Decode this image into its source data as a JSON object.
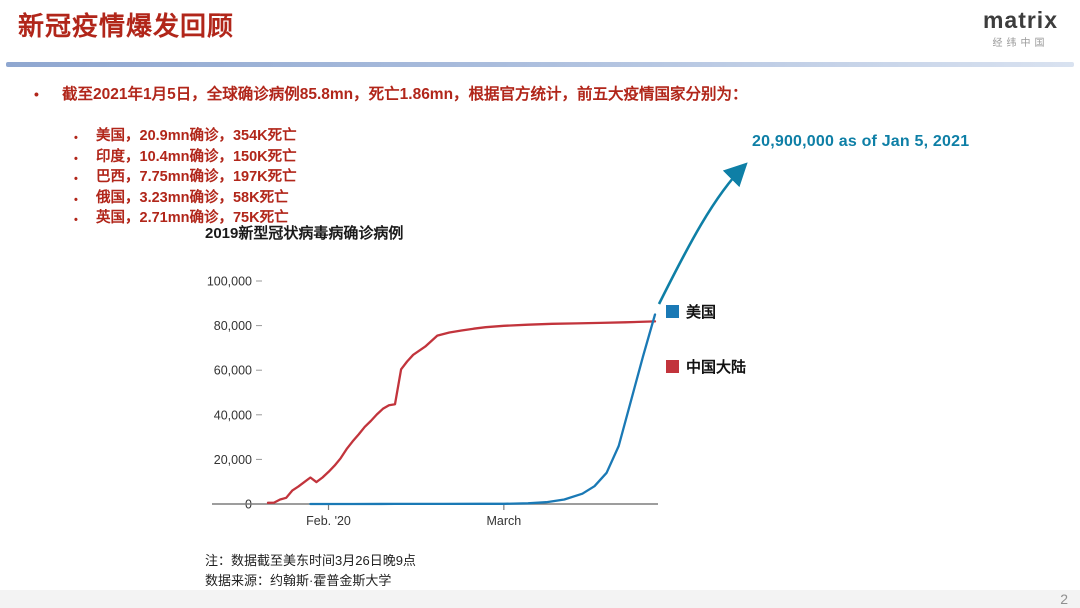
{
  "colors": {
    "accent_red": "#b1261a"
  },
  "header": {
    "title": "新冠疫情爆发回顾",
    "logo_text": "matrix",
    "logo_subtext": "经纬中国"
  },
  "bullets": {
    "main": "截至2021年1月5日，全球确诊病例85.8mn，死亡1.86mn，根据官方统计，前五大疫情国家分别为：",
    "items": [
      "美国，20.9mn确诊，354K死亡",
      "印度，10.4mn确诊，150K死亡",
      "巴西，7.75mn确诊，197K死亡",
      "俄国，3.23mn确诊，58K死亡",
      "英国，2.71mn确诊，75K死亡"
    ]
  },
  "chart_data": {
    "type": "line",
    "title": "2019新型冠状病毒病确诊病例",
    "xlabel": "",
    "ylabel": "",
    "ylim": [
      0,
      100000
    ],
    "grid": false,
    "legend_position": "right",
    "yticks": [
      0,
      20000,
      40000,
      60000,
      80000,
      100000
    ],
    "ytick_labels": [
      "0",
      "20,000",
      "40,000",
      "60,000",
      "80,000",
      "100,000"
    ],
    "x_unit": "days since 2020-01-21",
    "xticks": [
      {
        "day": 11,
        "label": "Feb. '20"
      },
      {
        "day": 40,
        "label": "March"
      }
    ],
    "series": [
      {
        "name": "美国",
        "color": "#1a79b5",
        "points": [
          [
            8,
            5
          ],
          [
            15,
            15
          ],
          [
            22,
            35
          ],
          [
            30,
            60
          ],
          [
            36,
            70
          ],
          [
            40,
            100
          ],
          [
            44,
            300
          ],
          [
            47,
            800
          ],
          [
            50,
            2000
          ],
          [
            53,
            4600
          ],
          [
            55,
            8000
          ],
          [
            57,
            14000
          ],
          [
            59,
            26000
          ],
          [
            61,
            46000
          ],
          [
            63,
            66000
          ],
          [
            65,
            85000
          ]
        ]
      },
      {
        "name": "中国大陆",
        "color": "#c2343c",
        "points": [
          [
            1,
            550
          ],
          [
            2,
            650
          ],
          [
            3,
            2000
          ],
          [
            4,
            2800
          ],
          [
            5,
            6000
          ],
          [
            6,
            7800
          ],
          [
            7,
            9800
          ],
          [
            8,
            11900
          ],
          [
            9,
            9800
          ],
          [
            10,
            11900
          ],
          [
            11,
            14400
          ],
          [
            12,
            17200
          ],
          [
            13,
            20500
          ],
          [
            14,
            24600
          ],
          [
            15,
            28100
          ],
          [
            16,
            31200
          ],
          [
            17,
            34600
          ],
          [
            18,
            37200
          ],
          [
            19,
            40200
          ],
          [
            20,
            42700
          ],
          [
            21,
            44300
          ],
          [
            22,
            44760
          ],
          [
            23,
            60400
          ],
          [
            24,
            63900
          ],
          [
            25,
            66900
          ],
          [
            27,
            70600
          ],
          [
            29,
            75500
          ],
          [
            31,
            76900
          ],
          [
            33,
            77800
          ],
          [
            35,
            78600
          ],
          [
            37,
            79300
          ],
          [
            40,
            79900
          ],
          [
            44,
            80400
          ],
          [
            48,
            80800
          ],
          [
            52,
            81000
          ],
          [
            56,
            81200
          ],
          [
            60,
            81500
          ],
          [
            65,
            81900
          ]
        ]
      }
    ],
    "annotation": {
      "text": "20,900,000 as of Jan 5, 2021",
      "color": "#0e7fa6"
    }
  },
  "notes": {
    "line1": "注：数据截至美东时间3月26日晚9点",
    "line2": "数据来源：约翰斯·霍普金斯大学"
  },
  "page_number": "2"
}
